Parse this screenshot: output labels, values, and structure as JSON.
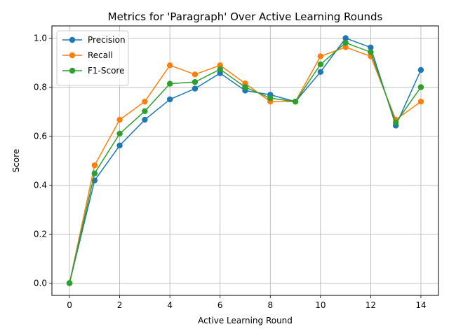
{
  "chart_data": {
    "type": "line",
    "title": "Metrics for 'Paragraph' Over Active Learning Rounds",
    "xlabel": "Active Learning Round",
    "ylabel": "Score",
    "xlim": [
      -0.7,
      14.7
    ],
    "ylim": [
      -0.05,
      1.05
    ],
    "xticks": [
      0,
      2,
      4,
      6,
      8,
      10,
      12,
      14
    ],
    "yticks": [
      0.0,
      0.2,
      0.4,
      0.6,
      0.8,
      1.0
    ],
    "xtick_labels": [
      "0",
      "2",
      "4",
      "6",
      "8",
      "10",
      "12",
      "14"
    ],
    "ytick_labels": [
      "0.0",
      "0.2",
      "0.4",
      "0.6",
      "0.8",
      "1.0"
    ],
    "grid": true,
    "legend_position": "top-left",
    "x": [
      0,
      1,
      2,
      3,
      4,
      5,
      6,
      7,
      8,
      9,
      10,
      11,
      12,
      13,
      14
    ],
    "series": [
      {
        "name": "Precision",
        "color": "#1f77b4",
        "values": [
          0.0,
          0.419,
          0.562,
          0.667,
          0.75,
          0.794,
          0.857,
          0.786,
          0.769,
          0.741,
          0.862,
          1.0,
          0.962,
          0.643,
          0.87
        ]
      },
      {
        "name": "Recall",
        "color": "#ff7f0e",
        "values": [
          0.0,
          0.481,
          0.667,
          0.741,
          0.889,
          0.852,
          0.889,
          0.815,
          0.741,
          0.741,
          0.926,
          0.963,
          0.926,
          0.667,
          0.741
        ]
      },
      {
        "name": "F1-Score",
        "color": "#2ca02c",
        "values": [
          0.0,
          0.448,
          0.61,
          0.702,
          0.814,
          0.821,
          0.873,
          0.8,
          0.755,
          0.741,
          0.893,
          0.981,
          0.943,
          0.655,
          0.8
        ]
      }
    ]
  }
}
